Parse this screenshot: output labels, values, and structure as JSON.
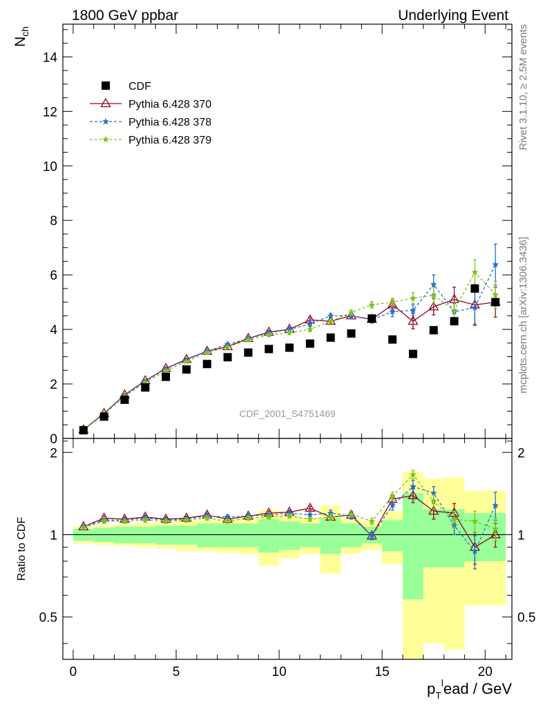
{
  "header": {
    "left": "1800 GeV ppbar",
    "right": "Underlying Event"
  },
  "side_labels": {
    "rivet": "Rivet 3.1.10, ≥ 2.5M events",
    "mcplots": "mcplots.cern.ch [arXiv:1306.3436]"
  },
  "analysis_label": "CDF_2001_S4751469",
  "colors": {
    "cdf": "#000000",
    "p370": "#8b0a1e",
    "p378": "#1f6fd6",
    "p379": "#7cc31d",
    "band_green": "#99ff99",
    "band_yellow": "#ffff99"
  },
  "chart_data": [
    {
      "type": "scatter",
      "ylabel_main": "N",
      "ylabel_sub": "ch",
      "xlim": [
        -0.5,
        21.3
      ],
      "ylim": [
        0,
        15.2
      ],
      "yticks": [
        0,
        2,
        4,
        6,
        8,
        10,
        12,
        14
      ],
      "legend_position": "top-left",
      "x": [
        0.5,
        1.5,
        2.5,
        3.5,
        4.5,
        5.5,
        6.5,
        7.5,
        8.5,
        9.5,
        10.5,
        11.5,
        12.5,
        13.5,
        14.5,
        15.5,
        16.5,
        17.5,
        18.5,
        19.5,
        20.5
      ],
      "series": [
        {
          "name": "CDF",
          "style": "data",
          "values": [
            0.3,
            0.8,
            1.42,
            1.87,
            2.26,
            2.53,
            2.73,
            2.98,
            3.15,
            3.28,
            3.33,
            3.48,
            3.7,
            3.85,
            4.4,
            3.63,
            3.1,
            3.97,
            4.3,
            5.5,
            5.0
          ]
        },
        {
          "name": "Pythia 6.428 370",
          "style": "370",
          "values": [
            0.32,
            0.92,
            1.6,
            2.12,
            2.57,
            2.9,
            3.2,
            3.37,
            3.67,
            3.9,
            4.01,
            4.35,
            4.3,
            4.5,
            4.37,
            4.9,
            4.3,
            4.83,
            5.1,
            4.9,
            5.0
          ],
          "err": [
            0.01,
            0.02,
            0.03,
            0.03,
            0.04,
            0.04,
            0.05,
            0.05,
            0.05,
            0.06,
            0.07,
            0.08,
            0.09,
            0.1,
            0.12,
            0.18,
            0.28,
            0.3,
            0.45,
            0.75,
            0.55
          ]
        },
        {
          "name": "Pythia 6.428 378",
          "style": "378",
          "values": [
            0.32,
            0.9,
            1.58,
            2.1,
            2.55,
            2.88,
            3.2,
            3.45,
            3.66,
            3.87,
            4.0,
            4.2,
            4.5,
            4.5,
            4.35,
            4.65,
            4.7,
            5.65,
            4.65,
            4.8,
            6.38
          ],
          "err": [
            0.01,
            0.02,
            0.03,
            0.03,
            0.04,
            0.04,
            0.05,
            0.05,
            0.05,
            0.06,
            0.07,
            0.08,
            0.09,
            0.1,
            0.12,
            0.18,
            0.2,
            0.35,
            0.3,
            0.6,
            0.75
          ]
        },
        {
          "name": "Pythia 6.428 379",
          "style": "379",
          "values": [
            0.3,
            0.88,
            1.55,
            2.05,
            2.48,
            2.82,
            3.15,
            3.35,
            3.62,
            3.8,
            3.88,
            4.0,
            4.3,
            4.62,
            4.9,
            5.0,
            5.15,
            5.25,
            4.7,
            6.1,
            5.27
          ],
          "err": [
            0.01,
            0.02,
            0.03,
            0.03,
            0.04,
            0.04,
            0.05,
            0.05,
            0.05,
            0.06,
            0.07,
            0.08,
            0.09,
            0.1,
            0.12,
            0.15,
            0.2,
            0.3,
            0.3,
            0.45,
            0.5
          ]
        }
      ]
    },
    {
      "type": "line",
      "ylabel": "Ratio to CDF",
      "xlabel_main": "p",
      "xlabel_sub": "T",
      "xlabel_sup": "l",
      "xlabel_rest": "ead / GeV",
      "xlim": [
        -0.5,
        21.3
      ],
      "ylim": [
        0.35,
        2.25
      ],
      "yticks": [
        0.5,
        1,
        2
      ],
      "ytick_labels": [
        "0.5",
        "1",
        "2"
      ],
      "xticks": [
        0,
        5,
        10,
        15,
        20
      ],
      "xtick_labels": [
        "0",
        "5",
        "10",
        "15",
        "20"
      ],
      "x": [
        0.5,
        1.5,
        2.5,
        3.5,
        4.5,
        5.5,
        6.5,
        7.5,
        8.5,
        9.5,
        10.5,
        11.5,
        12.5,
        13.5,
        14.5,
        15.5,
        16.5,
        17.5,
        18.5,
        19.5,
        20.5
      ],
      "bands": {
        "x_edges": [
          0,
          1,
          2,
          3,
          4,
          5,
          6,
          7,
          8,
          9,
          10,
          11,
          12,
          13,
          14,
          15,
          16,
          17,
          18,
          19,
          20,
          21
        ],
        "green_lo": [
          0.95,
          0.94,
          0.93,
          0.93,
          0.92,
          0.92,
          0.9,
          0.9,
          0.9,
          0.86,
          0.88,
          0.9,
          0.85,
          0.9,
          0.93,
          0.87,
          0.58,
          0.76,
          0.76,
          0.8,
          0.8
        ],
        "green_hi": [
          1.05,
          1.06,
          1.07,
          1.07,
          1.08,
          1.08,
          1.1,
          1.1,
          1.1,
          1.14,
          1.12,
          1.1,
          1.15,
          1.1,
          1.07,
          1.13,
          1.42,
          1.24,
          1.24,
          1.2,
          1.2
        ],
        "yellow_lo": [
          0.93,
          0.92,
          0.91,
          0.9,
          0.89,
          0.87,
          0.87,
          0.86,
          0.85,
          0.77,
          0.82,
          0.85,
          0.72,
          0.85,
          0.88,
          0.78,
          0.3,
          0.4,
          0.38,
          0.55,
          0.55
        ],
        "yellow_hi": [
          1.07,
          1.08,
          1.09,
          1.1,
          1.11,
          1.13,
          1.13,
          1.14,
          1.15,
          1.23,
          1.18,
          1.15,
          1.28,
          1.15,
          1.12,
          1.22,
          1.7,
          1.6,
          1.62,
          1.45,
          1.45
        ]
      },
      "series": [
        {
          "name": "Pythia 6.428 370",
          "style": "370",
          "values": [
            1.07,
            1.15,
            1.14,
            1.16,
            1.14,
            1.15,
            1.18,
            1.14,
            1.17,
            1.2,
            1.21,
            1.25,
            1.16,
            1.18,
            0.99,
            1.35,
            1.39,
            1.22,
            1.2,
            0.9,
            1.0
          ],
          "err": [
            0.01,
            0.02,
            0.02,
            0.02,
            0.02,
            0.02,
            0.02,
            0.02,
            0.02,
            0.02,
            0.02,
            0.02,
            0.03,
            0.03,
            0.03,
            0.05,
            0.08,
            0.08,
            0.1,
            0.12,
            0.1
          ]
        },
        {
          "name": "Pythia 6.428 378",
          "style": "378",
          "values": [
            1.07,
            1.13,
            1.13,
            1.15,
            1.13,
            1.14,
            1.17,
            1.16,
            1.17,
            1.18,
            1.2,
            1.18,
            1.2,
            1.17,
            0.99,
            1.28,
            1.5,
            1.42,
            1.08,
            0.87,
            1.28
          ],
          "err": [
            0.01,
            0.02,
            0.02,
            0.02,
            0.02,
            0.02,
            0.02,
            0.02,
            0.02,
            0.02,
            0.02,
            0.02,
            0.03,
            0.03,
            0.03,
            0.05,
            0.08,
            0.08,
            0.08,
            0.12,
            0.15
          ]
        },
        {
          "name": "Pythia 6.428 379",
          "style": "379",
          "values": [
            1.06,
            1.12,
            1.12,
            1.13,
            1.12,
            1.13,
            1.15,
            1.12,
            1.15,
            1.16,
            1.17,
            1.14,
            1.16,
            1.19,
            1.12,
            1.38,
            1.66,
            1.32,
            1.14,
            1.12,
            1.05
          ],
          "err": [
            0.01,
            0.02,
            0.02,
            0.02,
            0.02,
            0.02,
            0.02,
            0.02,
            0.02,
            0.02,
            0.02,
            0.02,
            0.03,
            0.03,
            0.03,
            0.05,
            0.06,
            0.08,
            0.08,
            0.1,
            0.1
          ]
        }
      ]
    }
  ]
}
